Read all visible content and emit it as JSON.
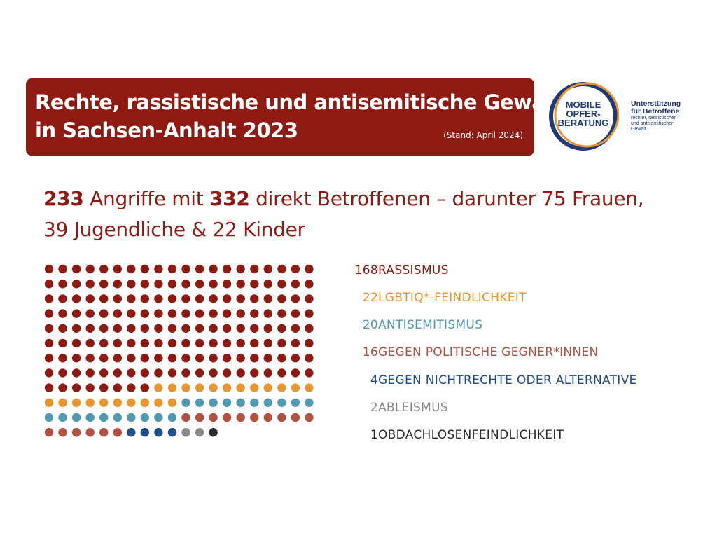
{
  "header": {
    "title_line1": "Rechte, rassistische und antisemitische Gewalt",
    "title_line2": "in Sachsen-Anhalt 2023",
    "stand": "(Stand: April 2024)"
  },
  "logo": {
    "line1": "MOBILE",
    "line2": "OPFER-",
    "line3": "BERATUNG",
    "side_line1": "Unterstützung",
    "side_line2": "für Betroffene",
    "side_line3": "rechter, rassistischer und antisemitischer Gewalt"
  },
  "headline": {
    "attacks": "233",
    "part1": " Angriffe mit ",
    "victims": "332",
    "part2": " direkt Betroffenen – darunter 75 Frauen,",
    "line2": "39 Jugendliche & 22 Kinder"
  },
  "colors": {
    "title_bg": "#8f1a12",
    "logo_blue": "#1f3a7a",
    "logo_orange": "#e8952e"
  },
  "chart_data": {
    "type": "waffle",
    "total": 233,
    "series": [
      {
        "name": "RASSISMUS",
        "value": 168,
        "color": "#8f1a12"
      },
      {
        "name": "LGBTIQ*-FEINDLICHKEIT",
        "value": 22,
        "color": "#e8952e"
      },
      {
        "name": "ANTISEMITISMUS",
        "value": 20,
        "color": "#4f9ab0"
      },
      {
        "name": "GEGEN POLITISCHE GEGNER*INNEN",
        "value": 16,
        "color": "#b3503f"
      },
      {
        "name": "GEGEN NICHTRECHTE ODER ALTERNATIVE",
        "value": 4,
        "color": "#1f4e8a"
      },
      {
        "name": "ABLEISMUS",
        "value": 2,
        "color": "#8a8a8a"
      },
      {
        "name": "OBDACHLOSENFEINDLICHKEIT",
        "value": 1,
        "color": "#2b2b2b"
      }
    ]
  }
}
